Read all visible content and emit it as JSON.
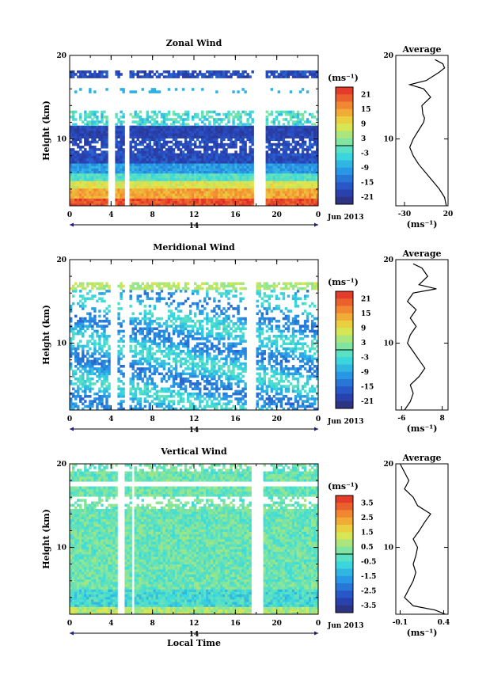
{
  "chart_data": [
    {
      "type": "heatmap",
      "title": "Zonal Wind",
      "ylabel": "Height (km)",
      "ylim": [
        2,
        20
      ],
      "yticks": [
        "10",
        "20"
      ],
      "xlim": [
        0,
        24
      ],
      "xticks": [
        "0",
        "4",
        "8",
        "12",
        "16",
        "20",
        "0"
      ],
      "date_label": "14",
      "month_label": "Jun 2013",
      "colorbar": {
        "unit": "(ms⁻¹)",
        "range": [
          -24,
          24
        ],
        "ticks": [
          "21",
          "15",
          "9",
          "3",
          "-3",
          "-9",
          "-15",
          "-21"
        ]
      },
      "gaps_hours": [
        [
          3.8,
          4.3
        ],
        [
          5.2,
          5.8
        ],
        [
          17.8,
          19.0
        ]
      ],
      "profile": {
        "title": "Average",
        "xlim": [
          -40,
          20
        ],
        "xticks": [
          "-30",
          "20"
        ],
        "xlabel": "(ms⁻¹)",
        "yticks": [
          "10",
          "20"
        ],
        "height_km": [
          2,
          3,
          4,
          5,
          6,
          7,
          8,
          9,
          10,
          11,
          12,
          12.5,
          13,
          14,
          15,
          16,
          16.5,
          17,
          18,
          18.5,
          19,
          19.5
        ],
        "value": [
          18,
          16,
          10,
          2,
          -6,
          -14,
          -20,
          -24,
          -20,
          -14,
          -8,
          -7,
          -9,
          -10,
          0,
          -8,
          -24,
          -5,
          10,
          16,
          14,
          5
        ]
      }
    },
    {
      "type": "heatmap",
      "title": "Meridional Wind",
      "ylabel": "Height (km)",
      "ylim": [
        2,
        20
      ],
      "yticks": [
        "10",
        "20"
      ],
      "xlim": [
        0,
        24
      ],
      "xticks": [
        "0",
        "4",
        "8",
        "12",
        "16",
        "20",
        "0"
      ],
      "date_label": "14",
      "month_label": "Jun 2013",
      "colorbar": {
        "unit": "(ms⁻¹)",
        "range": [
          -24,
          24
        ],
        "ticks": [
          "21",
          "15",
          "9",
          "3",
          "-3",
          "-9",
          "-15",
          "-21"
        ]
      },
      "gaps_hours": [
        [
          4.0,
          4.5
        ],
        [
          5.3,
          5.7
        ],
        [
          17.0,
          18.0
        ]
      ],
      "profile": {
        "title": "Average",
        "xlim": [
          -8,
          10
        ],
        "xticks": [
          "-6",
          "8"
        ],
        "xlabel": "(ms⁻¹)",
        "yticks": [
          "10",
          "20"
        ],
        "height_km": [
          2,
          3,
          4,
          5,
          6,
          7,
          8,
          9,
          10,
          11,
          12,
          13,
          14,
          15,
          15.5,
          16,
          16.5,
          17,
          18,
          19,
          19.5
        ],
        "value": [
          -5,
          -3,
          -2,
          -3,
          0,
          2,
          0,
          -2,
          -4,
          -3,
          -1,
          -3,
          -1,
          -4,
          -3,
          -2,
          6,
          0,
          3,
          1,
          -2
        ]
      }
    },
    {
      "type": "heatmap",
      "title": "Vertical Wind",
      "ylabel": "Height (km)",
      "ylim": [
        2,
        20
      ],
      "yticks": [
        "10",
        "20"
      ],
      "xlim": [
        0,
        24
      ],
      "xticks": [
        "0",
        "4",
        "8",
        "12",
        "16",
        "20",
        "0"
      ],
      "xlabel": "Local Time",
      "date_label": "14",
      "month_label": "Jun 2013",
      "colorbar": {
        "unit": "(ms⁻¹)",
        "range": [
          -4,
          4
        ],
        "ticks": [
          "3.5",
          "2.5",
          "1.5",
          "0.5",
          "-0.5",
          "-1.5",
          "-2.5",
          "-3.5"
        ]
      },
      "gaps_hours": [
        [
          4.6,
          5.2
        ],
        [
          5.9,
          6.2
        ],
        [
          17.6,
          18.8
        ]
      ],
      "profile": {
        "title": "Average",
        "xlim": [
          -0.15,
          0.45
        ],
        "xticks": [
          "-0.1",
          "0.4"
        ],
        "xlabel": "(ms⁻¹)",
        "yticks": [
          "10",
          "20"
        ],
        "height_km": [
          2,
          2.5,
          3,
          4,
          5,
          6,
          7,
          8,
          9,
          10,
          11,
          12,
          13,
          14,
          15,
          16,
          17,
          18,
          19,
          20
        ],
        "value": [
          0.42,
          0.3,
          0.05,
          -0.05,
          0.0,
          0.05,
          0.08,
          0.05,
          0.08,
          0.1,
          0.05,
          0.12,
          0.18,
          0.25,
          0.1,
          0.05,
          -0.05,
          0.0,
          -0.05,
          -0.1
        ]
      }
    }
  ]
}
